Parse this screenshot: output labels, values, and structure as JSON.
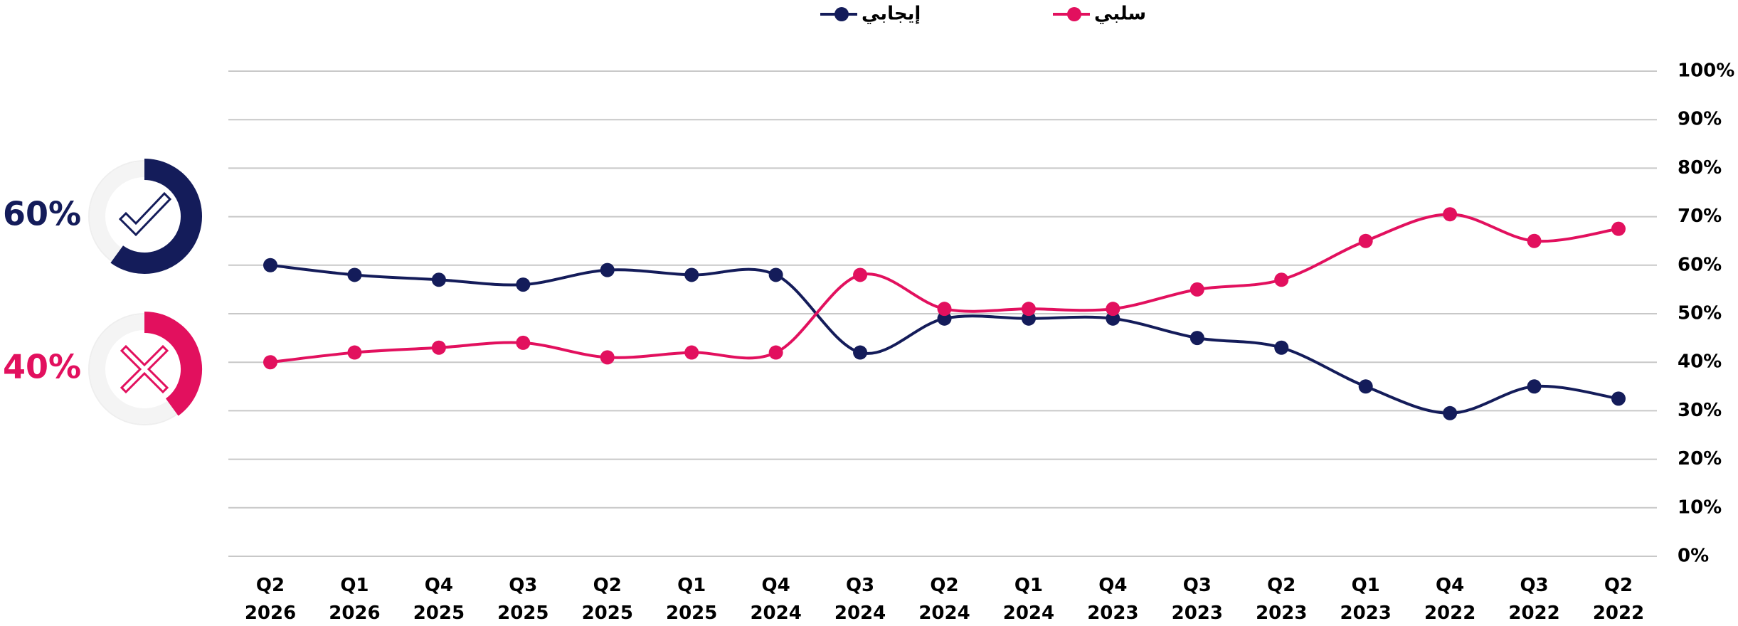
{
  "chart_data": {
    "type": "line",
    "categories": [
      [
        "Q2",
        "2026"
      ],
      [
        "Q1",
        "2026"
      ],
      [
        "Q4",
        "2025"
      ],
      [
        "Q3",
        "2025"
      ],
      [
        "Q2",
        "2025"
      ],
      [
        "Q1",
        "2025"
      ],
      [
        "Q4",
        "2024"
      ],
      [
        "Q3",
        "2024"
      ],
      [
        "Q2",
        "2024"
      ],
      [
        "Q1",
        "2024"
      ],
      [
        "Q4",
        "2023"
      ],
      [
        "Q3",
        "2023"
      ],
      [
        "Q2",
        "2023"
      ],
      [
        "Q1",
        "2023"
      ],
      [
        "Q4",
        "2022"
      ],
      [
        "Q3",
        "2022"
      ],
      [
        "Q2",
        "2022"
      ]
    ],
    "series": [
      {
        "name": "إيجابي",
        "color": "#141c5a",
        "values": [
          60,
          58,
          57,
          56,
          59,
          58,
          58,
          42,
          49,
          49,
          49,
          45,
          43,
          35,
          29.5,
          35,
          32.5
        ]
      },
      {
        "name": "سلبي",
        "color": "#e2105e",
        "values": [
          40,
          42,
          43,
          44,
          41,
          42,
          42,
          58,
          51,
          51,
          51,
          55,
          57,
          65,
          70.5,
          65,
          67.5
        ]
      }
    ],
    "ylim": [
      0,
      100
    ],
    "yticks": [
      {
        "value": 0,
        "label": "0%"
      },
      {
        "value": 10,
        "label": "10%"
      },
      {
        "value": 20,
        "label": "20%"
      },
      {
        "value": 30,
        "label": "30%"
      },
      {
        "value": 40,
        "label": "40%"
      },
      {
        "value": 50,
        "label": "50%"
      },
      {
        "value": 60,
        "label": "60%"
      },
      {
        "value": 70,
        "label": "70%"
      },
      {
        "value": 80,
        "label": "80%"
      },
      {
        "value": 90,
        "label": "90%"
      },
      {
        "value": 100,
        "label": "100%"
      }
    ],
    "grid": true,
    "legend": "top",
    "summary": [
      {
        "value": 60,
        "label": "60%",
        "color": "#141c5a",
        "icon": "check"
      },
      {
        "value": 40,
        "label": "40%",
        "color": "#e2105e",
        "icon": "cross"
      }
    ]
  }
}
